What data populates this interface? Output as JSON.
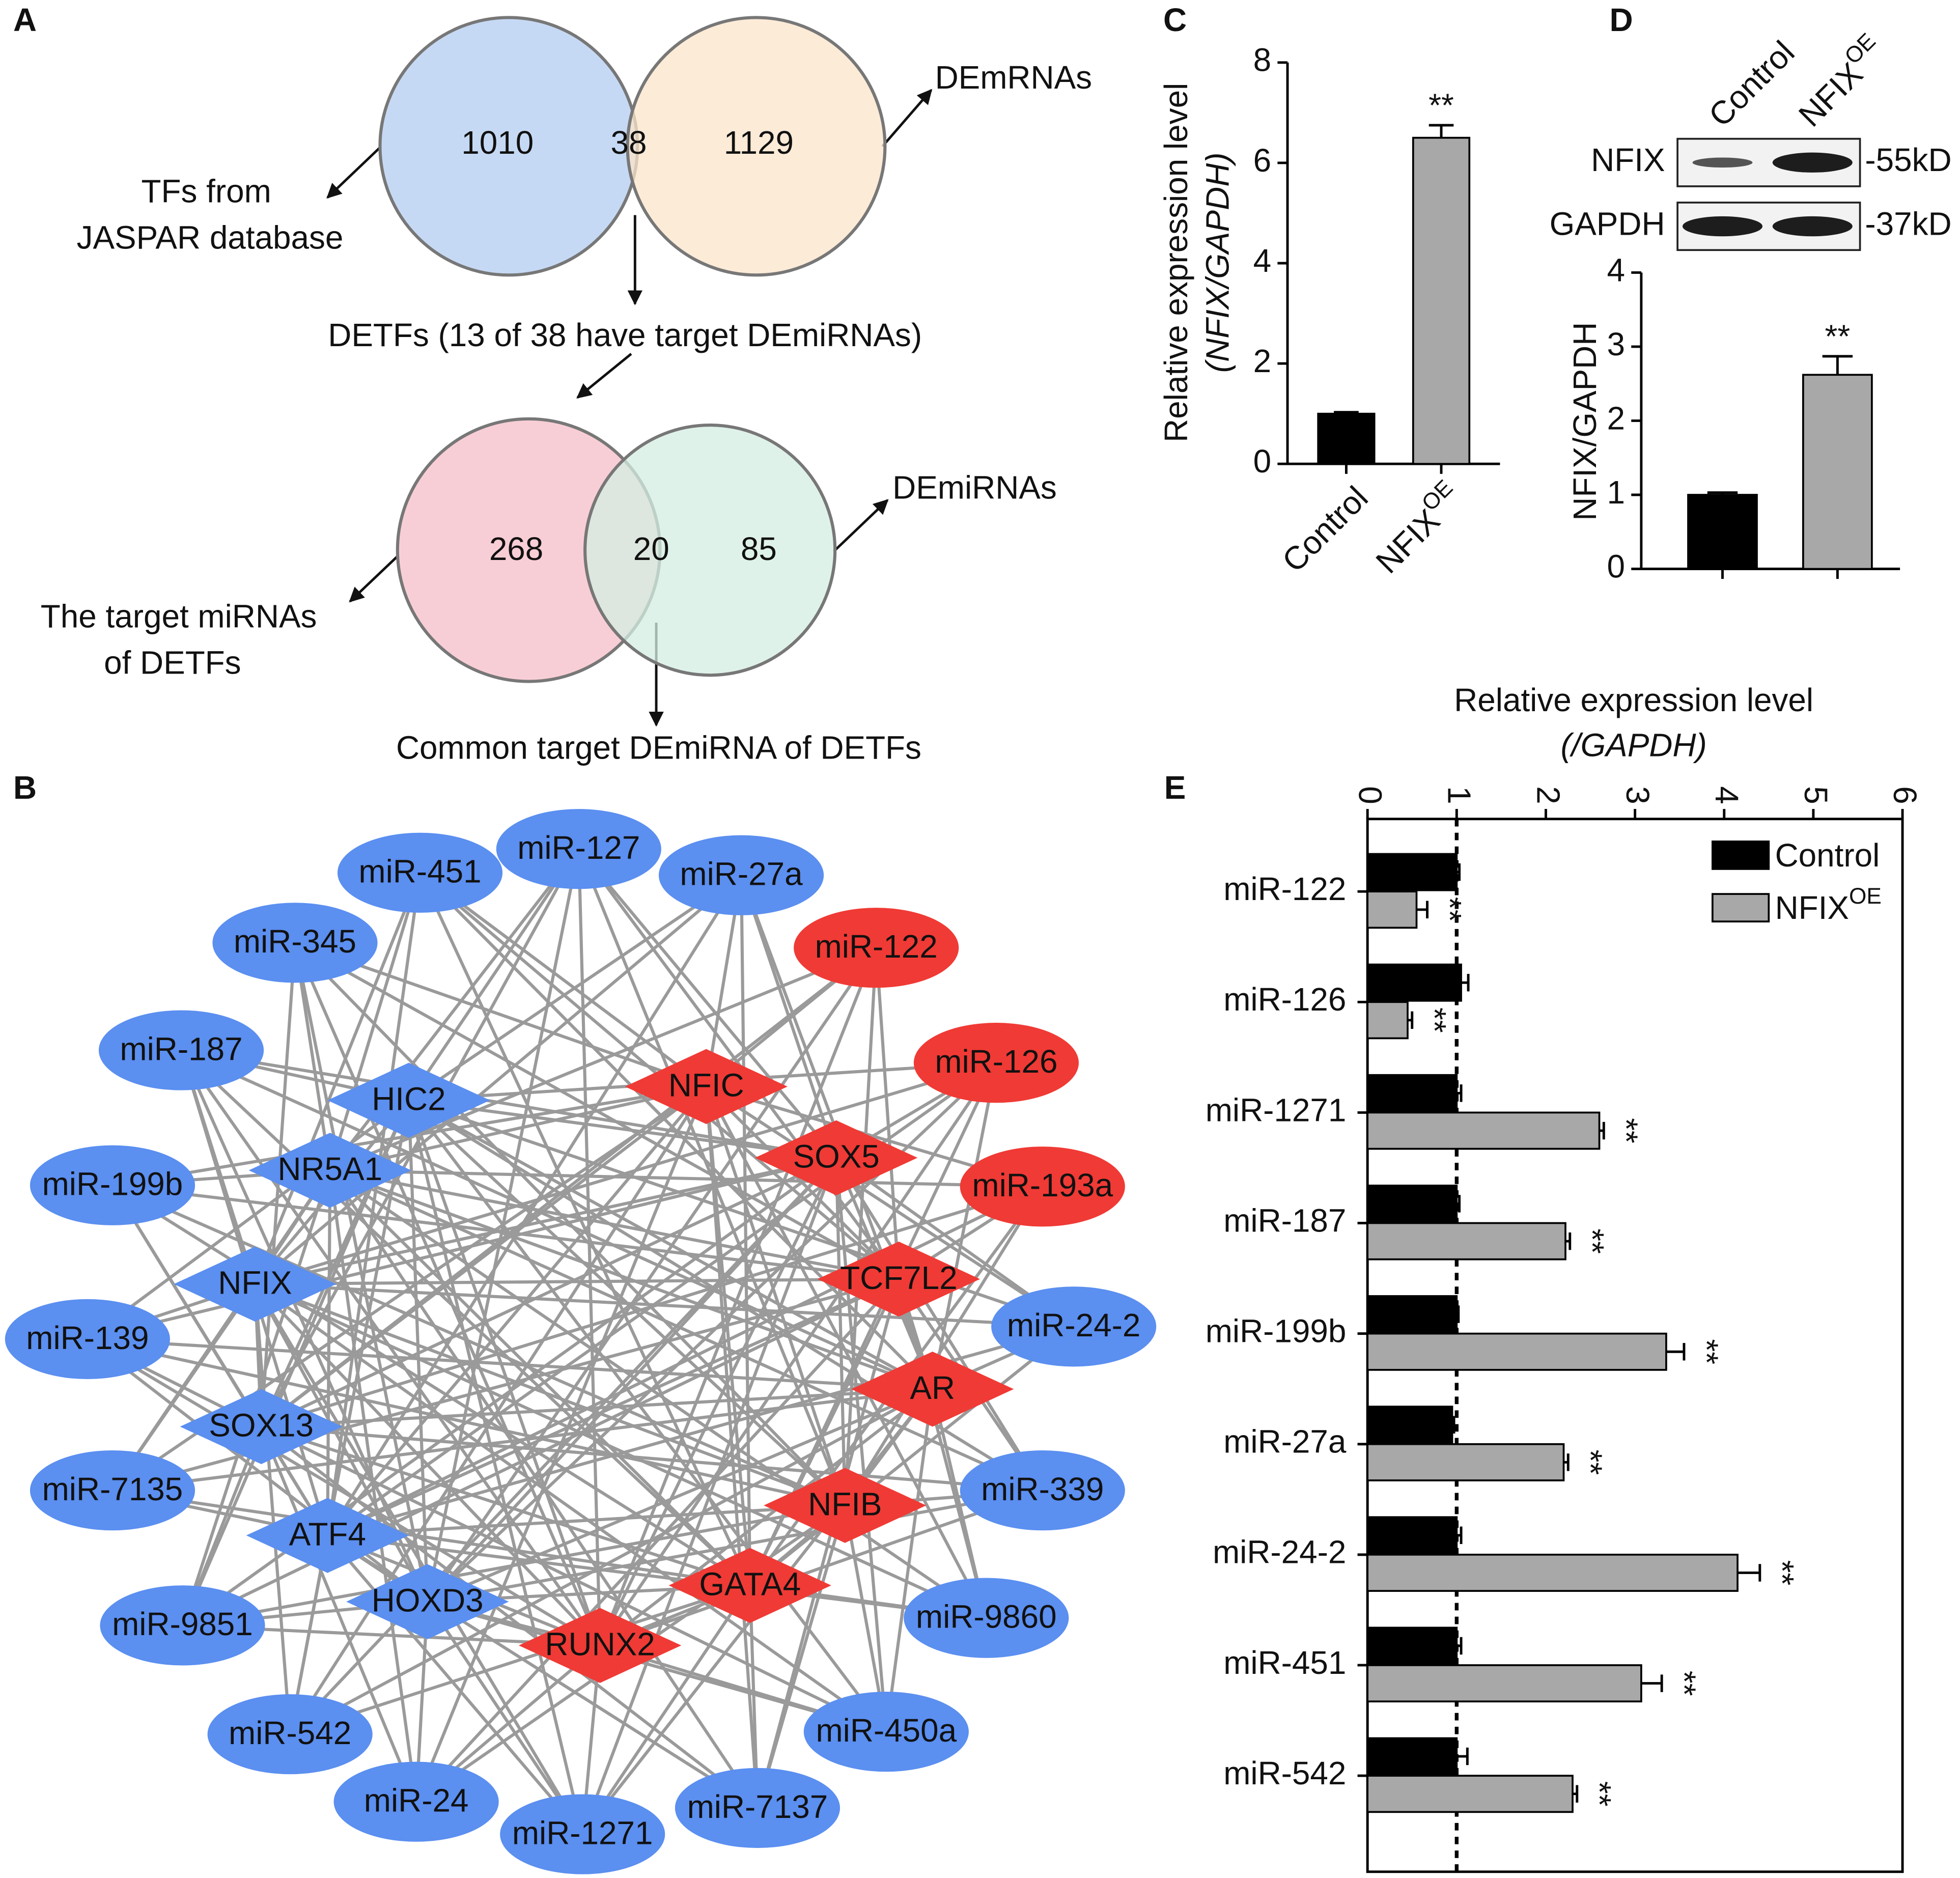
{
  "panel_labels": [
    "A",
    "B",
    "C",
    "D",
    "E"
  ],
  "venn": [
    {
      "left_label": [
        "TFs from",
        "JASPAR database"
      ],
      "right_label": "DEmRNAs",
      "left_only": 1010,
      "overlap": 38,
      "right_only": 1129,
      "intersection_label": "DETFs (13 of 38 have target DEmiRNAs)",
      "colors": [
        "#c6d9f4",
        "#fbe4c9"
      ]
    },
    {
      "left_label": [
        "The target miRNAs",
        "of DETFs"
      ],
      "right_label": "DEmiRNAs",
      "left_only": 268,
      "overlap": 20,
      "right_only": 85,
      "intersection_label": "Common target DEmiRNA of DETFs",
      "colors": [
        "#f8ced6",
        "#d4eee1"
      ]
    }
  ],
  "network": {
    "edge_color": "#9a9a9a",
    "nodes": [
      {
        "label": "miR-451",
        "shape": "ellipse",
        "color": "#5b8ff0"
      },
      {
        "label": "miR-127",
        "shape": "ellipse",
        "color": "#5b8ff0"
      },
      {
        "label": "miR-27a",
        "shape": "ellipse",
        "color": "#5b8ff0"
      },
      {
        "label": "miR-345",
        "shape": "ellipse",
        "color": "#5b8ff0"
      },
      {
        "label": "miR-187",
        "shape": "ellipse",
        "color": "#5b8ff0"
      },
      {
        "label": "miR-199b",
        "shape": "ellipse",
        "color": "#5b8ff0"
      },
      {
        "label": "miR-139",
        "shape": "ellipse",
        "color": "#5b8ff0"
      },
      {
        "label": "miR-7135",
        "shape": "ellipse",
        "color": "#5b8ff0"
      },
      {
        "label": "miR-9851",
        "shape": "ellipse",
        "color": "#5b8ff0"
      },
      {
        "label": "miR-542",
        "shape": "ellipse",
        "color": "#5b8ff0"
      },
      {
        "label": "miR-24",
        "shape": "ellipse",
        "color": "#5b8ff0"
      },
      {
        "label": "miR-1271",
        "shape": "ellipse",
        "color": "#5b8ff0"
      },
      {
        "label": "miR-7137",
        "shape": "ellipse",
        "color": "#5b8ff0"
      },
      {
        "label": "miR-450a",
        "shape": "ellipse",
        "color": "#5b8ff0"
      },
      {
        "label": "miR-9860",
        "shape": "ellipse",
        "color": "#5b8ff0"
      },
      {
        "label": "miR-339",
        "shape": "ellipse",
        "color": "#5b8ff0"
      },
      {
        "label": "miR-24-2",
        "shape": "ellipse",
        "color": "#5b8ff0"
      },
      {
        "label": "miR-122",
        "shape": "ellipse",
        "color": "#f03a35"
      },
      {
        "label": "miR-126",
        "shape": "ellipse",
        "color": "#f03a35"
      },
      {
        "label": "miR-193a",
        "shape": "ellipse",
        "color": "#f03a35"
      },
      {
        "label": "HIC2",
        "shape": "diamond",
        "color": "#5b8ff0"
      },
      {
        "label": "NR5A1",
        "shape": "diamond",
        "color": "#5b8ff0"
      },
      {
        "label": "NFIX",
        "shape": "diamond",
        "color": "#5b8ff0"
      },
      {
        "label": "SOX13",
        "shape": "diamond",
        "color": "#5b8ff0"
      },
      {
        "label": "ATF4",
        "shape": "diamond",
        "color": "#5b8ff0"
      },
      {
        "label": "HOXD3",
        "shape": "diamond",
        "color": "#5b8ff0"
      },
      {
        "label": "NFIC",
        "shape": "diamond",
        "color": "#f03a35"
      },
      {
        "label": "SOX5",
        "shape": "diamond",
        "color": "#f03a35"
      },
      {
        "label": "TCF7L2",
        "shape": "diamond",
        "color": "#f03a35"
      },
      {
        "label": "AR",
        "shape": "diamond",
        "color": "#f03a35"
      },
      {
        "label": "NFIB",
        "shape": "diamond",
        "color": "#f03a35"
      },
      {
        "label": "GATA4",
        "shape": "diamond",
        "color": "#f03a35"
      },
      {
        "label": "RUNX2",
        "shape": "diamond",
        "color": "#f03a35"
      }
    ]
  },
  "chart_data": [
    {
      "type": "bar",
      "ylabel": "Relative expression level",
      "ylabel2": "(NFIX/GAPDH)",
      "categories": [
        "Control",
        "NFIX"
      ],
      "category_sup": [
        null,
        "OE"
      ],
      "values": [
        1,
        6.5
      ],
      "errors": [
        0.03,
        0.25
      ],
      "annotations": [
        null,
        "**"
      ],
      "colors": [
        "#000000",
        "#a8a8a8"
      ],
      "ylim": [
        0,
        8
      ],
      "yticks": [
        0,
        2,
        4,
        6,
        8
      ]
    },
    {
      "type": "bar",
      "ylabel": "NFIX/GAPDH",
      "categories": [
        "Control",
        "NFIX"
      ],
      "category_sup": [
        null,
        "OE"
      ],
      "blot_rows": [
        {
          "name": "NFIX",
          "size": "-55kD"
        },
        {
          "name": "GAPDH",
          "size": "-37kD"
        }
      ],
      "values": [
        1,
        2.62
      ],
      "errors": [
        0.03,
        0.25
      ],
      "annotations": [
        null,
        "**"
      ],
      "colors": [
        "#000000",
        "#a8a8a8"
      ],
      "ylim": [
        0,
        4
      ],
      "yticks": [
        0,
        1,
        2,
        3,
        4
      ]
    },
    {
      "type": "barh",
      "title": "Relative expression level",
      "subtitle": "(/GAPDH)",
      "categories": [
        "miR-122",
        "miR-126",
        "miR-1271",
        "miR-187",
        "miR-199b",
        "miR-27a",
        "miR-24-2",
        "miR-451",
        "miR-542"
      ],
      "series": [
        {
          "name": "Control",
          "color": "#000000",
          "values": [
            1.0,
            1.05,
            1.0,
            1.0,
            1.0,
            0.95,
            1.0,
            1.0,
            1.0
          ],
          "errors": [
            0.03,
            0.08,
            0.05,
            0.03,
            0.02,
            0.02,
            0.05,
            0.05,
            0.12
          ]
        },
        {
          "name": "NFIX",
          "name_sup": "OE",
          "color": "#a8a8a8",
          "values": [
            0.55,
            0.45,
            2.6,
            2.22,
            3.35,
            2.2,
            4.15,
            3.07,
            2.3
          ],
          "errors": [
            0.12,
            0.05,
            0.05,
            0.05,
            0.2,
            0.05,
            0.25,
            0.23,
            0.05
          ],
          "annotations": [
            "**",
            "**",
            "**",
            "**",
            "**",
            "**",
            "**",
            "**",
            "**"
          ]
        }
      ],
      "reference_line": 1,
      "xlim": [
        0,
        6
      ],
      "xticks": [
        0,
        1,
        2,
        3,
        4,
        5,
        6
      ],
      "legend": "upper right"
    }
  ]
}
